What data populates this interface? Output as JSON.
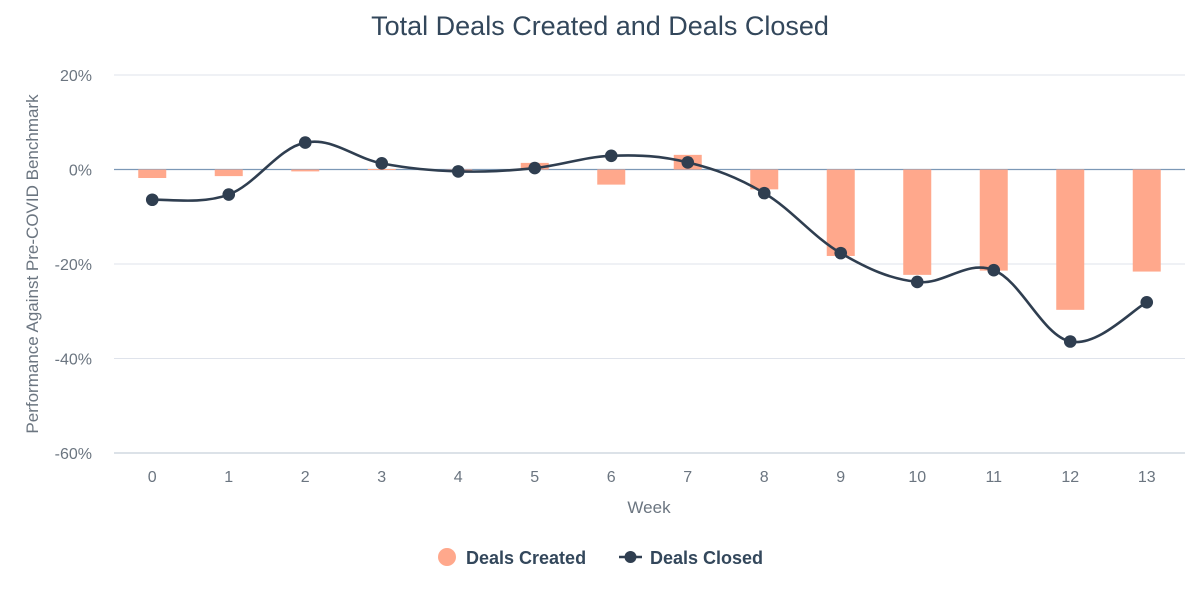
{
  "chart_data": {
    "type": "bar",
    "title": "Total Deals Created and Deals Closed",
    "xlabel": "Week",
    "ylabel": "Performance Against Pre-COVID Benchmark",
    "categories": [
      0,
      1,
      2,
      3,
      4,
      5,
      6,
      7,
      8,
      9,
      10,
      11,
      12,
      13
    ],
    "ylim": [
      -60,
      20
    ],
    "yticks": [
      20,
      0,
      -20,
      -40,
      -60
    ],
    "ytick_labels": [
      "20%",
      "0%",
      "-20%",
      "-40%",
      "-60%"
    ],
    "grid": true,
    "legend_position": "bottom-center",
    "series": [
      {
        "name": "Deals Created",
        "type": "bar",
        "color": "#ffa88c",
        "values": [
          -1.8,
          -1.4,
          -0.4,
          0.1,
          -0.2,
          1.4,
          -3.2,
          3.1,
          -4.2,
          -18.3,
          -22.3,
          -21.4,
          -29.7,
          -21.6
        ]
      },
      {
        "name": "Deals Closed",
        "type": "line",
        "color": "#2f3e50",
        "values": [
          -6.4,
          -5.3,
          5.7,
          1.3,
          -0.4,
          0.3,
          2.9,
          1.5,
          -5.0,
          -17.7,
          -23.8,
          -21.3,
          -36.4,
          -28.1
        ]
      }
    ]
  }
}
